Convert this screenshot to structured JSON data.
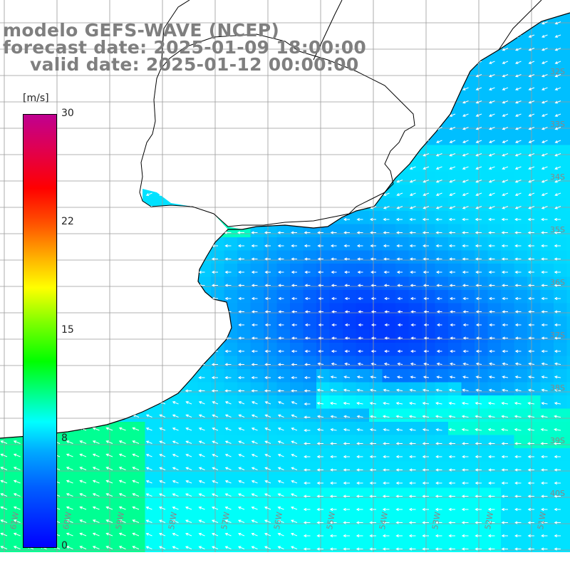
{
  "title": {
    "line1": "modelo GEFS-WAVE (NCEP)",
    "line2": "forecast date: 2025-01-09 18:00:00",
    "line3": "valid date: 2025-01-12 00:00:00"
  },
  "colorbar": {
    "unit": "[m/s]",
    "ticks": [
      "30",
      "22",
      "15",
      "8",
      "0"
    ],
    "tick_values": [
      30,
      22,
      15,
      8,
      0
    ],
    "min": 0,
    "max": 30,
    "colors": [
      "#0000ff",
      "#0060ff",
      "#00a8ff",
      "#00ffff",
      "#00ff80",
      "#00ff00",
      "#80ff00",
      "#ffff00",
      "#ffb000",
      "#ff5000",
      "#ff0000",
      "#e00050",
      "#c00090"
    ]
  },
  "axes": {
    "lon_labels": [
      "61W",
      "60W",
      "59W",
      "58W",
      "57W",
      "56W",
      "55W",
      "54W",
      "53W",
      "52W",
      "51W"
    ],
    "lat_labels": [
      "32S",
      "33S",
      "34S",
      "35S",
      "36S",
      "37S",
      "38S",
      "39S",
      "40S"
    ]
  },
  "colors": {
    "land": "#ffffff",
    "coastline": "#000000",
    "grid": "#9a9a9a",
    "arrows": "#ffffff",
    "title": "#7f7f7f"
  }
}
